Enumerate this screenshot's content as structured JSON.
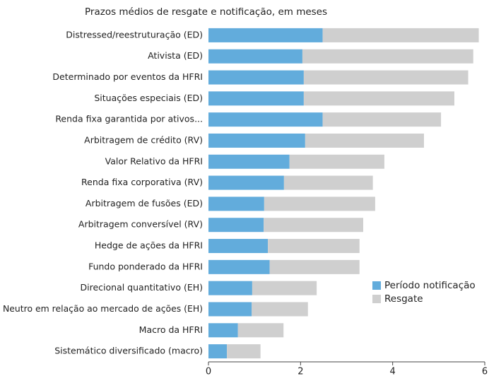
{
  "chart_data": {
    "type": "stacked-bar-horizontal",
    "title": "Prazos médios de resgate e notificação, em meses",
    "categories": [
      "Distressed/reestruturação (ED)",
      "Ativista (ED)",
      "Determinado por eventos da HFRI",
      "Situações especiais (ED)",
      "Renda fixa garantida por ativos...",
      "Arbitragem de crédito (RV)",
      "Valor Relativo da HFRI",
      "Renda fixa corporativa (RV)",
      "Arbitragem de fusões (ED)",
      "Arbitragem conversível (RV)",
      "Hedge de ações da HFRI",
      "Fundo ponderado da HFRI",
      "Direcional quantitativo (EH)",
      "Neutro em relação ao mercado de ações (EH)",
      "Macro da HFRI",
      "Sistemático diversificado (macro)"
    ],
    "series": [
      {
        "name": "Período notificação",
        "color": "#62acdc",
        "values": [
          2.48,
          2.04,
          2.07,
          2.07,
          2.48,
          2.1,
          1.76,
          1.64,
          1.21,
          1.2,
          1.29,
          1.33,
          0.95,
          0.94,
          0.64,
          0.4
        ]
      },
      {
        "name": "Resgate",
        "color": "#cfcfcf",
        "values": [
          3.39,
          3.71,
          3.57,
          3.27,
          2.57,
          2.58,
          2.06,
          1.93,
          2.41,
          2.16,
          1.99,
          1.95,
          1.4,
          1.22,
          0.99,
          0.73
        ]
      }
    ],
    "xlim": [
      0,
      6
    ],
    "xticks": [
      0,
      2,
      4,
      6
    ],
    "legend": "lower-right"
  }
}
